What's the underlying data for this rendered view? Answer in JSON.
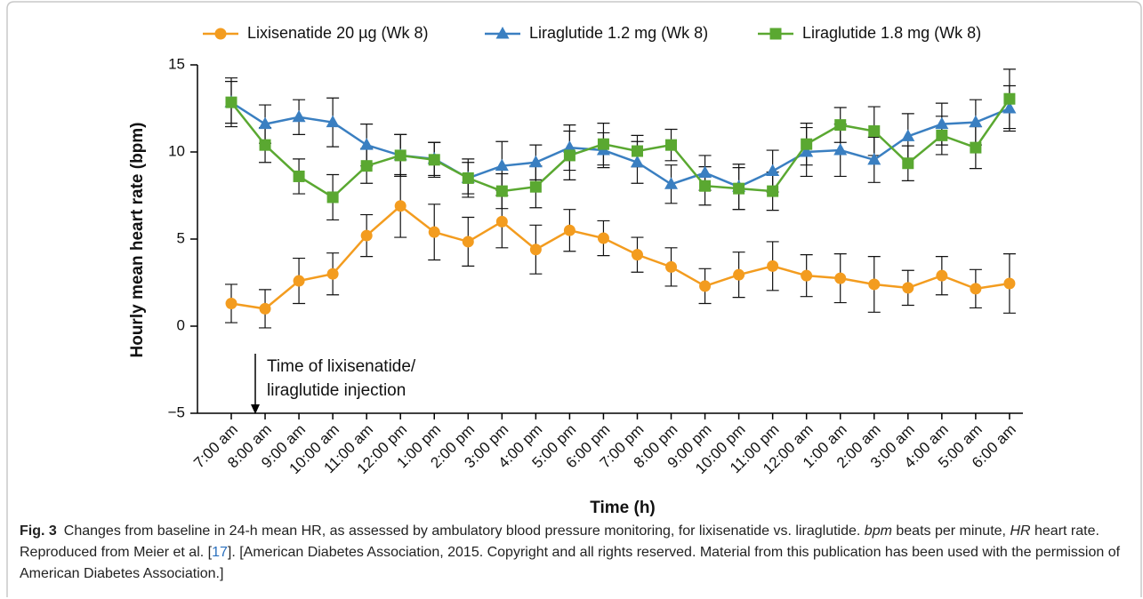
{
  "chart_data": {
    "type": "line",
    "categories": [
      "7:00 am",
      "8:00 am",
      "9:00 am",
      "10:00 am",
      "11:00 am",
      "12:00 pm",
      "1:00 pm",
      "2:00 pm",
      "3:00 pm",
      "4:00 pm",
      "5:00 pm",
      "6:00 pm",
      "7:00 pm",
      "8:00 pm",
      "9:00 pm",
      "10:00 pm",
      "11:00 pm",
      "12:00 am",
      "1:00 am",
      "2:00 am",
      "3:00 am",
      "4:00 am",
      "5:00 am",
      "6:00 am"
    ],
    "series": [
      {
        "name": "Lixisenatide 20 µg (Wk 8)",
        "color": "#f39c1f",
        "marker": "circle",
        "values": [
          1.3,
          1.0,
          2.6,
          3.0,
          5.2,
          6.9,
          5.4,
          4.85,
          6.0,
          4.4,
          5.5,
          5.05,
          4.1,
          3.4,
          2.3,
          2.95,
          3.45,
          2.9,
          2.75,
          2.4,
          2.2,
          2.9,
          2.15,
          2.45
        ],
        "errors": [
          1.1,
          1.1,
          1.3,
          1.2,
          1.2,
          1.8,
          1.6,
          1.4,
          1.5,
          1.4,
          1.2,
          1.0,
          1.0,
          1.1,
          1.0,
          1.3,
          1.4,
          1.2,
          1.4,
          1.6,
          1.0,
          1.1,
          1.1,
          1.7
        ]
      },
      {
        "name": "Liraglutide 1.2 mg (Wk 8)",
        "color": "#3a7fc1",
        "marker": "triangle",
        "values": [
          12.85,
          11.6,
          12.0,
          11.7,
          10.4,
          9.8,
          9.6,
          8.5,
          9.2,
          9.4,
          10.25,
          10.1,
          9.4,
          8.15,
          8.8,
          8.0,
          8.9,
          10.0,
          10.1,
          9.55,
          10.9,
          11.6,
          11.7,
          12.5
        ],
        "errors": [
          1.4,
          1.1,
          1.0,
          1.4,
          1.2,
          1.2,
          0.95,
          1.1,
          1.4,
          1.0,
          1.3,
          1.0,
          1.2,
          1.1,
          1.0,
          1.3,
          1.2,
          1.4,
          1.5,
          1.3,
          1.3,
          1.2,
          1.3,
          1.3
        ]
      },
      {
        "name": "Liraglutide 1.8 mg (Wk 8)",
        "color": "#5aa831",
        "marker": "square",
        "values": [
          12.85,
          10.4,
          8.6,
          7.4,
          9.2,
          9.8,
          9.55,
          8.5,
          7.75,
          8.0,
          9.8,
          10.45,
          10.05,
          10.4,
          8.05,
          7.9,
          7.75,
          10.45,
          11.55,
          11.2,
          9.35,
          10.95,
          10.25,
          13.05
        ],
        "errors": [
          1.2,
          1.0,
          1.0,
          1.3,
          1.0,
          1.2,
          1.0,
          0.9,
          1.0,
          1.2,
          1.4,
          1.2,
          0.9,
          0.9,
          1.1,
          1.2,
          1.1,
          1.2,
          1.0,
          1.4,
          1.0,
          1.1,
          1.2,
          1.7
        ]
      }
    ],
    "ylim": [
      -5,
      15
    ],
    "yticks": [
      {
        "value": -5,
        "label": "−5"
      },
      0,
      5,
      10,
      15
    ],
    "ylabel": "Hourly mean heart rate (bpm)",
    "xlabel": "Time (h)",
    "annotation": [
      "Time of lixisenatide/",
      "liraglutide injection"
    ],
    "legend": "top"
  },
  "caption": {
    "label": "Fig. 3",
    "segments": [
      "Changes from baseline in 24-h mean HR, as assessed by ambulatory blood pressure monitoring, for lixisenatide vs. liraglutide. ",
      "bpm",
      " beats per minute, ",
      "HR",
      " heart rate. Reproduced from Meier et al. [",
      "17",
      "]. [American Diabetes Association, 2015. Copyright and all rights reserved. Material from this publication has been used with the permission of American Diabetes Association.]"
    ]
  }
}
